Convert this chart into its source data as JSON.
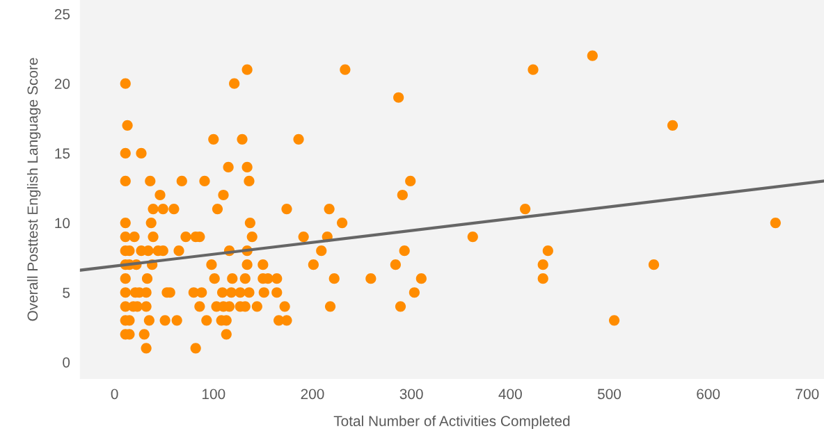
{
  "chart_data": {
    "type": "scatter",
    "xlabel": "Total Number of Activities Completed",
    "ylabel": "Overall Posttest English Language Score",
    "xlim": [
      -35,
      717
    ],
    "ylim": [
      -1.2,
      26
    ],
    "xticks": [
      0,
      100,
      200,
      300,
      400,
      500,
      600,
      700
    ],
    "yticks": [
      0,
      5,
      10,
      15,
      20,
      25
    ],
    "grid": false,
    "marker": "circle",
    "series": [
      {
        "color": "#ff8c00",
        "x": [
          483,
          134,
          233,
          423,
          11,
          121,
          287,
          13,
          564,
          100,
          129,
          186,
          11,
          27,
          115,
          134,
          11,
          36,
          68,
          91,
          136,
          299,
          46,
          110,
          291,
          39,
          49,
          60,
          104,
          174,
          217,
          415,
          11,
          37,
          137,
          230,
          668,
          11,
          20,
          39,
          72,
          82,
          86,
          139,
          191,
          215,
          362,
          11,
          15,
          27,
          34,
          44,
          49,
          65,
          116,
          134,
          209,
          293,
          438,
          11,
          15,
          22,
          38,
          98,
          134,
          150,
          201,
          284,
          433,
          545,
          11,
          33,
          101,
          119,
          132,
          150,
          155,
          164,
          222,
          259,
          310,
          433,
          11,
          21,
          25,
          32,
          53,
          56,
          80,
          88,
          109,
          118,
          127,
          136,
          151,
          164,
          303,
          11,
          19,
          23,
          32,
          86,
          103,
          110,
          116,
          127,
          132,
          144,
          172,
          218,
          289,
          11,
          15,
          35,
          51,
          63,
          93,
          108,
          113,
          166,
          174,
          505,
          11,
          15,
          30,
          113,
          32,
          82
        ],
        "values": [
          22,
          21,
          21,
          21,
          20,
          20,
          19,
          17,
          17,
          16,
          16,
          16,
          15,
          15,
          14,
          14,
          13,
          13,
          13,
          13,
          13,
          13,
          12,
          12,
          12,
          11,
          11,
          11,
          11,
          11,
          11,
          11,
          10,
          10,
          10,
          10,
          10,
          9,
          9,
          9,
          9,
          9,
          9,
          9,
          9,
          9,
          9,
          8,
          8,
          8,
          8,
          8,
          8,
          8,
          8,
          8,
          8,
          8,
          8,
          7,
          7,
          7,
          7,
          7,
          7,
          7,
          7,
          7,
          7,
          7,
          6,
          6,
          6,
          6,
          6,
          6,
          6,
          6,
          6,
          6,
          6,
          6,
          5,
          5,
          5,
          5,
          5,
          5,
          5,
          5,
          5,
          5,
          5,
          5,
          5,
          5,
          5,
          4,
          4,
          4,
          4,
          4,
          4,
          4,
          4,
          4,
          4,
          4,
          4,
          4,
          4,
          3,
          3,
          3,
          3,
          3,
          3,
          3,
          3,
          3,
          3,
          3,
          2,
          2,
          2,
          2,
          1,
          1
        ]
      },
      {
        "type": "line",
        "color": "#666666",
        "line_style": "solid",
        "marker": "none",
        "x": [
          -35,
          717
        ],
        "values": [
          6.6,
          13.0
        ]
      }
    ]
  }
}
